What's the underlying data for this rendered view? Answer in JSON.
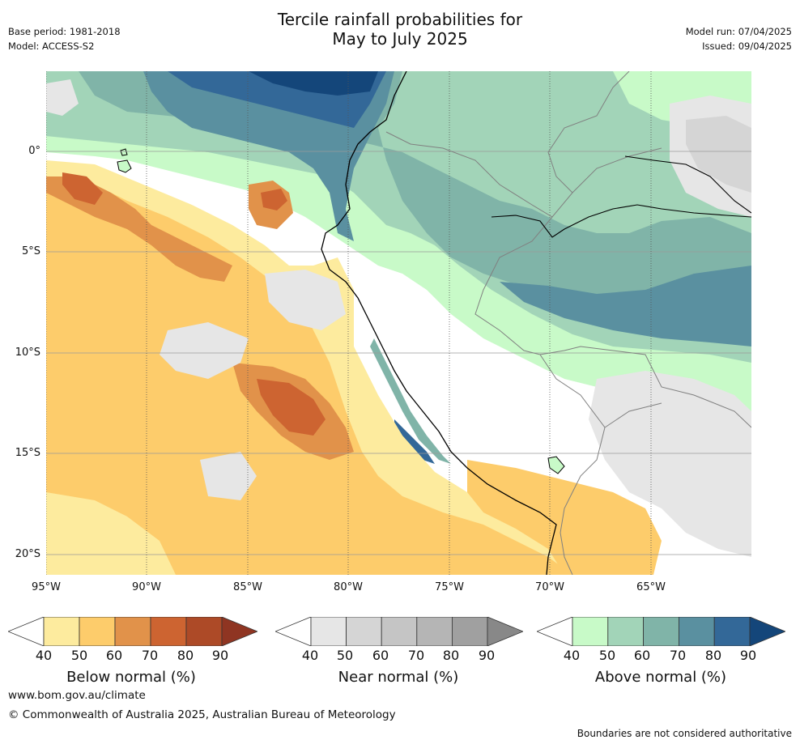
{
  "header": {
    "base_period": "Base period: 1981-2018",
    "model": "Model: ACCESS-S2",
    "title_line1": "Tercile rainfall probabilities for",
    "title_line2": "May to July 2025",
    "model_run": "Model run: 07/04/2025",
    "issued": "Issued: 09/04/2025"
  },
  "axes": {
    "lat_labels": [
      "0°",
      "5°S",
      "10°S",
      "15°S",
      "20°S"
    ],
    "lon_labels": [
      "95°W",
      "90°W",
      "85°W",
      "80°W",
      "75°W",
      "70°W",
      "65°W"
    ]
  },
  "colorbars": [
    {
      "title": "Below normal (%)",
      "ticks": [
        "40",
        "50",
        "60",
        "70",
        "80",
        "90"
      ],
      "colors": [
        "#ffffff",
        "#fdeb9e",
        "#fdcc6b",
        "#e1924a",
        "#cd6431",
        "#ad4a27",
        "#8f3522"
      ]
    },
    {
      "title": "Near normal (%)",
      "ticks": [
        "40",
        "50",
        "60",
        "70",
        "80",
        "90"
      ],
      "colors": [
        "#ffffff",
        "#e6e6e6",
        "#d5d5d5",
        "#c5c5c5",
        "#b5b5b5",
        "#a0a0a0",
        "#888888"
      ]
    },
    {
      "title": "Above normal (%)",
      "ticks": [
        "40",
        "50",
        "60",
        "70",
        "80",
        "90"
      ],
      "colors": [
        "#ffffff",
        "#c8fac8",
        "#a2d4b8",
        "#80b4a8",
        "#5a90a0",
        "#336898",
        "#14467a"
      ]
    }
  ],
  "footer": {
    "website": "www.bom.gov.au/climate",
    "copyright": "© Commonwealth of Australia 2025, Australian Bureau of Meteorology",
    "disclaimer": "Boundaries are not considered authoritative"
  }
}
